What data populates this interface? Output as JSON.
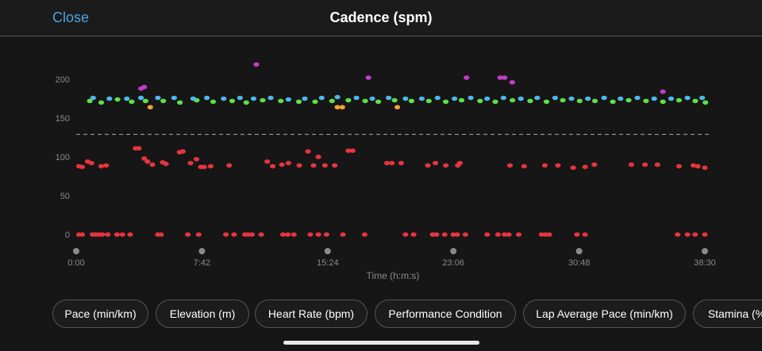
{
  "header": {
    "close_label": "Close",
    "title": "Cadence (spm)"
  },
  "chips": [
    {
      "label": "Pace (min/km)"
    },
    {
      "label": "Elevation (m)"
    },
    {
      "label": "Heart Rate (bpm)"
    },
    {
      "label": "Performance Condition"
    },
    {
      "label": "Lap Average Pace (min/km)"
    },
    {
      "label": "Stamina (%"
    }
  ],
  "colors": {
    "background": "#161616",
    "green": "#5ee04a",
    "blue": "#4db8ef",
    "orange": "#f5a03a",
    "purple": "#c43cc8",
    "red": "#e8343f",
    "average_line": "#9a9a9a"
  },
  "chart_data": {
    "type": "scatter",
    "xlabel": "Time (h:m:s)",
    "ylabel": "",
    "ylim": [
      0,
      200
    ],
    "y_ticks": [
      "0",
      "50",
      "100",
      "150",
      "200"
    ],
    "x_ticks": [
      "0:00",
      "7:42",
      "15:24",
      "23:06",
      "30:48",
      "38:30"
    ],
    "x_tick_seconds": [
      0,
      462,
      924,
      1386,
      1848,
      2310
    ],
    "average_line": 129,
    "series": [
      {
        "color": "green",
        "points": [
          [
            50,
            172
          ],
          [
            92,
            170
          ],
          [
            152,
            174
          ],
          [
            204,
            171
          ],
          [
            255,
            172
          ],
          [
            320,
            172
          ],
          [
            381,
            170
          ],
          [
            443,
            173
          ],
          [
            503,
            171
          ],
          [
            573,
            172
          ],
          [
            625,
            170
          ],
          [
            685,
            173
          ],
          [
            752,
            172
          ],
          [
            818,
            171
          ],
          [
            878,
            171
          ],
          [
            940,
            172
          ],
          [
            1000,
            173
          ],
          [
            1062,
            172
          ],
          [
            1110,
            171
          ],
          [
            1170,
            173
          ],
          [
            1232,
            172
          ],
          [
            1296,
            172
          ],
          [
            1358,
            171
          ],
          [
            1416,
            173
          ],
          [
            1484,
            172
          ],
          [
            1540,
            171
          ],
          [
            1603,
            173
          ],
          [
            1668,
            172
          ],
          [
            1728,
            171
          ],
          [
            1788,
            173
          ],
          [
            1850,
            172
          ],
          [
            1906,
            172
          ],
          [
            1972,
            171
          ],
          [
            2030,
            173
          ],
          [
            2094,
            172
          ],
          [
            2156,
            171
          ],
          [
            2215,
            173
          ],
          [
            2275,
            172
          ],
          [
            2312,
            170
          ]
        ]
      },
      {
        "color": "blue",
        "points": [
          [
            62,
            176
          ],
          [
            122,
            175
          ],
          [
            186,
            175
          ],
          [
            238,
            176
          ],
          [
            300,
            176
          ],
          [
            360,
            176
          ],
          [
            430,
            175
          ],
          [
            480,
            176
          ],
          [
            542,
            175
          ],
          [
            602,
            176
          ],
          [
            652,
            175
          ],
          [
            715,
            176
          ],
          [
            780,
            174
          ],
          [
            840,
            175
          ],
          [
            902,
            176
          ],
          [
            960,
            177
          ],
          [
            1030,
            176
          ],
          [
            1088,
            175
          ],
          [
            1148,
            176
          ],
          [
            1210,
            175
          ],
          [
            1270,
            175
          ],
          [
            1328,
            176
          ],
          [
            1390,
            175
          ],
          [
            1450,
            176
          ],
          [
            1510,
            175
          ],
          [
            1570,
            176
          ],
          [
            1634,
            175
          ],
          [
            1694,
            176
          ],
          [
            1760,
            176
          ],
          [
            1820,
            175
          ],
          [
            1880,
            175
          ],
          [
            1940,
            176
          ],
          [
            2000,
            175
          ],
          [
            2062,
            176
          ],
          [
            2124,
            175
          ],
          [
            2186,
            175
          ],
          [
            2246,
            176
          ],
          [
            2300,
            176
          ]
        ]
      },
      {
        "color": "orange",
        "points": [
          [
            272,
            164
          ],
          [
            960,
            164
          ],
          [
            978,
            164
          ],
          [
            1180,
            164
          ]
        ]
      },
      {
        "color": "purple",
        "points": [
          [
            238,
            188
          ],
          [
            250,
            190
          ],
          [
            662,
            219
          ],
          [
            1074,
            202
          ],
          [
            1434,
            202
          ],
          [
            1558,
            202
          ],
          [
            1574,
            202
          ],
          [
            1602,
            196
          ],
          [
            2156,
            184
          ]
        ]
      },
      {
        "color": "red",
        "points": [
          [
            10,
            88
          ],
          [
            22,
            87
          ],
          [
            42,
            94
          ],
          [
            56,
            92
          ],
          [
            92,
            88
          ],
          [
            110,
            89
          ],
          [
            218,
            111
          ],
          [
            230,
            111
          ],
          [
            250,
            98
          ],
          [
            262,
            94
          ],
          [
            280,
            90
          ],
          [
            318,
            93
          ],
          [
            330,
            91
          ],
          [
            380,
            106
          ],
          [
            392,
            107
          ],
          [
            420,
            92
          ],
          [
            442,
            97
          ],
          [
            458,
            87
          ],
          [
            470,
            87
          ],
          [
            494,
            88
          ],
          [
            562,
            89
          ],
          [
            702,
            94
          ],
          [
            722,
            88
          ],
          [
            756,
            90
          ],
          [
            780,
            92
          ],
          [
            820,
            89
          ],
          [
            852,
            107
          ],
          [
            872,
            89
          ],
          [
            890,
            100
          ],
          [
            914,
            89
          ],
          [
            950,
            89
          ],
          [
            1000,
            108
          ],
          [
            1016,
            108
          ],
          [
            1142,
            92
          ],
          [
            1160,
            92
          ],
          [
            1194,
            92
          ],
          [
            1292,
            89
          ],
          [
            1320,
            92
          ],
          [
            1358,
            89
          ],
          [
            1402,
            89
          ],
          [
            1410,
            92
          ],
          [
            1594,
            89
          ],
          [
            1646,
            88
          ],
          [
            1722,
            89
          ],
          [
            1770,
            89
          ],
          [
            1826,
            86
          ],
          [
            1870,
            87
          ],
          [
            1904,
            90
          ],
          [
            2040,
            90
          ],
          [
            2090,
            90
          ],
          [
            2136,
            90
          ],
          [
            2215,
            88
          ],
          [
            2268,
            89
          ],
          [
            2284,
            88
          ],
          [
            2310,
            86
          ],
          [
            10,
            0
          ],
          [
            22,
            0
          ],
          [
            60,
            0
          ],
          [
            72,
            0
          ],
          [
            84,
            0
          ],
          [
            96,
            0
          ],
          [
            116,
            0
          ],
          [
            150,
            0
          ],
          [
            170,
            0
          ],
          [
            198,
            0
          ],
          [
            300,
            0
          ],
          [
            312,
            0
          ],
          [
            410,
            0
          ],
          [
            450,
            0
          ],
          [
            550,
            0
          ],
          [
            580,
            0
          ],
          [
            620,
            0
          ],
          [
            632,
            0
          ],
          [
            646,
            0
          ],
          [
            680,
            0
          ],
          [
            760,
            0
          ],
          [
            778,
            0
          ],
          [
            800,
            0
          ],
          [
            860,
            0
          ],
          [
            890,
            0
          ],
          [
            920,
            0
          ],
          [
            980,
            0
          ],
          [
            1060,
            0
          ],
          [
            1210,
            0
          ],
          [
            1240,
            0
          ],
          [
            1310,
            0
          ],
          [
            1324,
            0
          ],
          [
            1354,
            0
          ],
          [
            1386,
            0
          ],
          [
            1400,
            0
          ],
          [
            1430,
            0
          ],
          [
            1510,
            0
          ],
          [
            1550,
            0
          ],
          [
            1574,
            0
          ],
          [
            1590,
            0
          ],
          [
            1626,
            0
          ],
          [
            1710,
            0
          ],
          [
            1724,
            0
          ],
          [
            1738,
            0
          ],
          [
            1840,
            0
          ],
          [
            1870,
            0
          ],
          [
            2210,
            0
          ],
          [
            2246,
            0
          ],
          [
            2274,
            0
          ],
          [
            2310,
            0
          ]
        ]
      }
    ]
  }
}
